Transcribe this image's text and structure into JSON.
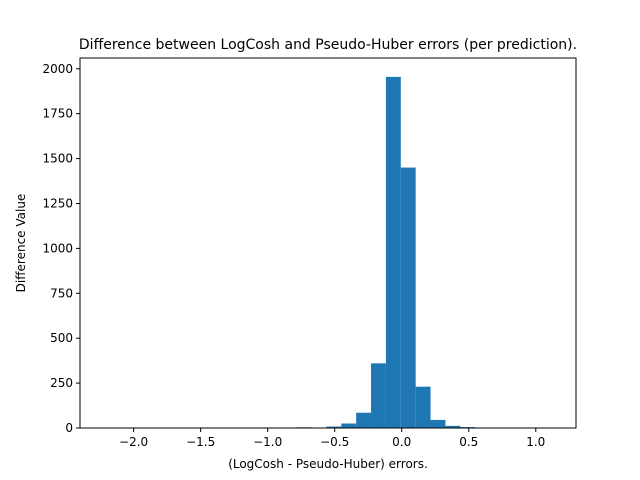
{
  "chart_data": {
    "type": "bar",
    "title": "Difference between  LogCosh and Pseudo-Huber errors (per prediction).",
    "xlabel": "(LogCosh - Pseudo-Huber) errors.",
    "ylabel": "Difference Value",
    "xlim": [
      -2.4,
      1.3
    ],
    "ylim": [
      0,
      2060
    ],
    "xticks": [
      -2.0,
      -1.5,
      -1.0,
      -0.5,
      0.0,
      0.5,
      1.0
    ],
    "xtick_labels": [
      "−2.0",
      "−1.5",
      "−1.0",
      "−0.5",
      "0.0",
      "0.5",
      "1.0"
    ],
    "yticks": [
      0,
      250,
      500,
      750,
      1000,
      1250,
      1500,
      1750,
      2000
    ],
    "ytick_labels": [
      "0",
      "250",
      "500",
      "750",
      "1000",
      "1250",
      "1500",
      "1750",
      "2000"
    ],
    "bar_color": "#1f77b4",
    "bins": [
      {
        "x0": -2.338,
        "x1": -2.227,
        "value": 1
      },
      {
        "x0": -2.227,
        "x1": -2.116,
        "value": 0
      },
      {
        "x0": -2.116,
        "x1": -2.005,
        "value": 0
      },
      {
        "x0": -2.005,
        "x1": -1.894,
        "value": 0
      },
      {
        "x0": -1.894,
        "x1": -1.783,
        "value": 0
      },
      {
        "x0": -1.783,
        "x1": -1.672,
        "value": 0
      },
      {
        "x0": -1.672,
        "x1": -1.561,
        "value": 0
      },
      {
        "x0": -1.561,
        "x1": -1.45,
        "value": 0
      },
      {
        "x0": -1.45,
        "x1": -1.339,
        "value": 0
      },
      {
        "x0": -1.339,
        "x1": -1.228,
        "value": 0
      },
      {
        "x0": -1.228,
        "x1": -1.117,
        "value": 0
      },
      {
        "x0": -1.117,
        "x1": -1.006,
        "value": 0
      },
      {
        "x0": -1.006,
        "x1": -0.895,
        "value": 1
      },
      {
        "x0": -0.895,
        "x1": -0.784,
        "value": 1
      },
      {
        "x0": -0.784,
        "x1": -0.673,
        "value": 4
      },
      {
        "x0": -0.673,
        "x1": -0.562,
        "value": 2
      },
      {
        "x0": -0.562,
        "x1": -0.451,
        "value": 8
      },
      {
        "x0": -0.451,
        "x1": -0.34,
        "value": 25
      },
      {
        "x0": -0.34,
        "x1": -0.229,
        "value": 85
      },
      {
        "x0": -0.229,
        "x1": -0.118,
        "value": 360
      },
      {
        "x0": -0.118,
        "x1": -0.007,
        "value": 1955
      },
      {
        "x0": -0.007,
        "x1": 0.104,
        "value": 1450
      },
      {
        "x0": 0.104,
        "x1": 0.215,
        "value": 230
      },
      {
        "x0": 0.215,
        "x1": 0.326,
        "value": 45
      },
      {
        "x0": 0.326,
        "x1": 0.437,
        "value": 12
      },
      {
        "x0": 0.437,
        "x1": 0.548,
        "value": 5
      },
      {
        "x0": 0.548,
        "x1": 0.659,
        "value": 2
      },
      {
        "x0": 0.659,
        "x1": 0.77,
        "value": 1
      },
      {
        "x0": 0.77,
        "x1": 0.881,
        "value": 0
      },
      {
        "x0": 0.881,
        "x1": 0.992,
        "value": 0
      },
      {
        "x0": 0.992,
        "x1": 1.103,
        "value": 0
      },
      {
        "x0": 1.103,
        "x1": 1.214,
        "value": 1
      }
    ]
  }
}
